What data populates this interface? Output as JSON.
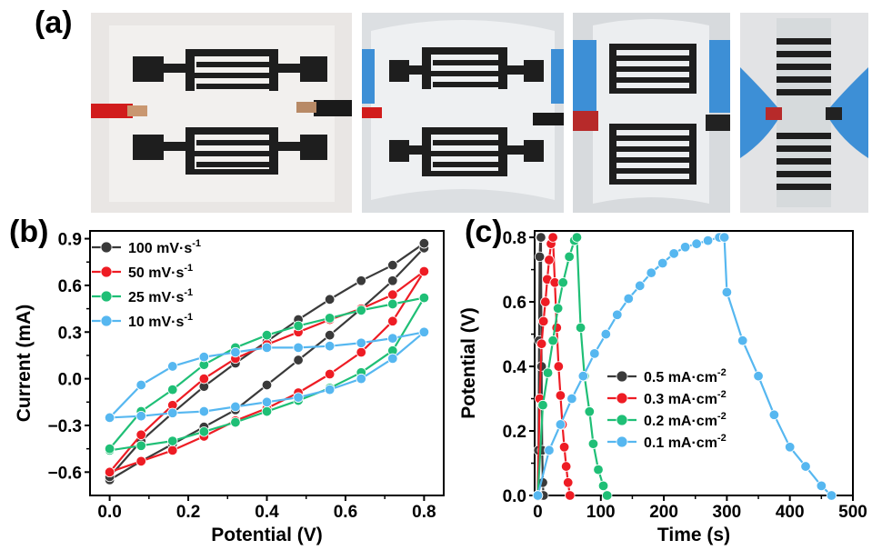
{
  "panels": {
    "a": "(a)",
    "b": "(b)",
    "c": "(c)"
  },
  "photos": [
    {
      "name": "photo-flat-device"
    },
    {
      "name": "photo-slightly-bent-device"
    },
    {
      "name": "photo-bent-device"
    },
    {
      "name": "photo-rolled-device"
    }
  ],
  "colors": {
    "black": "#3a3a3a",
    "red": "#ee1c24",
    "green": "#1fbf76",
    "blue": "#56b7f0"
  },
  "chart_data": [
    {
      "type": "line",
      "panel": "(b)",
      "xlabel": "Potential (V)",
      "ylabel": "Current (mA)",
      "xlim": [
        -0.05,
        0.85
      ],
      "ylim": [
        -0.75,
        0.95
      ],
      "xticks": [
        0.0,
        0.2,
        0.4,
        0.6,
        0.8
      ],
      "xtick_labels": [
        "0.0",
        "0.2",
        "0.4",
        "0.6",
        "0.8"
      ],
      "yticks": [
        -0.6,
        -0.3,
        0.0,
        0.3,
        0.6,
        0.9
      ],
      "ytick_labels": [
        "−0.6",
        "−0.3",
        "0.0",
        "0.3",
        "0.6",
        "0.9"
      ],
      "legend_position": "top-left",
      "series": [
        {
          "name": "100 mV·s",
          "sup": "-1",
          "color": "#3a3a3a",
          "x": [
            0.0,
            0.08,
            0.16,
            0.24,
            0.32,
            0.4,
            0.48,
            0.56,
            0.64,
            0.72,
            0.8,
            0.8,
            0.72,
            0.64,
            0.56,
            0.48,
            0.4,
            0.32,
            0.24,
            0.16,
            0.08,
            0.0
          ],
          "y": [
            -0.65,
            -0.53,
            -0.42,
            -0.31,
            -0.2,
            -0.04,
            0.12,
            0.28,
            0.45,
            0.63,
            0.84,
            0.87,
            0.73,
            0.63,
            0.51,
            0.38,
            0.24,
            0.1,
            -0.05,
            -0.22,
            -0.4,
            -0.63
          ]
        },
        {
          "name": "50 mV·s",
          "sup": "-1",
          "color": "#ee1c24",
          "x": [
            0.0,
            0.08,
            0.16,
            0.24,
            0.32,
            0.4,
            0.48,
            0.56,
            0.64,
            0.72,
            0.8,
            0.8,
            0.72,
            0.64,
            0.56,
            0.48,
            0.4,
            0.32,
            0.24,
            0.16,
            0.08,
            0.0
          ],
          "y": [
            -0.6,
            -0.53,
            -0.46,
            -0.37,
            -0.27,
            -0.19,
            -0.09,
            0.03,
            0.17,
            0.37,
            0.69,
            0.69,
            0.54,
            0.45,
            0.38,
            0.3,
            0.22,
            0.13,
            0.0,
            -0.17,
            -0.36,
            -0.6
          ]
        },
        {
          "name": "25 mV·s",
          "sup": "-1",
          "color": "#1fbf76",
          "x": [
            0.0,
            0.08,
            0.16,
            0.24,
            0.32,
            0.4,
            0.48,
            0.56,
            0.64,
            0.72,
            0.8,
            0.8,
            0.72,
            0.64,
            0.56,
            0.48,
            0.4,
            0.32,
            0.24,
            0.16,
            0.08,
            0.0
          ],
          "y": [
            -0.46,
            -0.43,
            -0.4,
            -0.34,
            -0.28,
            -0.21,
            -0.14,
            -0.06,
            0.04,
            0.18,
            0.52,
            0.52,
            0.48,
            0.44,
            0.39,
            0.34,
            0.28,
            0.2,
            0.09,
            -0.07,
            -0.21,
            -0.45
          ]
        },
        {
          "name": "10 mV·s",
          "sup": "-1",
          "color": "#56b7f0",
          "x": [
            0.0,
            0.08,
            0.16,
            0.24,
            0.32,
            0.4,
            0.48,
            0.56,
            0.64,
            0.72,
            0.8,
            0.8,
            0.72,
            0.64,
            0.56,
            0.48,
            0.4,
            0.32,
            0.24,
            0.16,
            0.08,
            0.0
          ],
          "y": [
            -0.25,
            -0.24,
            -0.22,
            -0.21,
            -0.18,
            -0.15,
            -0.12,
            -0.07,
            0.0,
            0.13,
            0.3,
            0.3,
            0.26,
            0.23,
            0.21,
            0.2,
            0.2,
            0.17,
            0.14,
            0.08,
            -0.04,
            -0.25
          ]
        }
      ]
    },
    {
      "type": "line",
      "panel": "(c)",
      "xlabel": "Time (s)",
      "ylabel": "Potential (V)",
      "xlim": [
        -5,
        500
      ],
      "ylim": [
        0.0,
        0.82
      ],
      "xticks": [
        0,
        100,
        200,
        300,
        400,
        500
      ],
      "xtick_labels": [
        "0",
        "100",
        "200",
        "300",
        "400",
        "500"
      ],
      "yticks": [
        0.0,
        0.2,
        0.4,
        0.6,
        0.8
      ],
      "ytick_labels": [
        "0.0",
        "0.2",
        "0.4",
        "0.6",
        "0.8"
      ],
      "legend_position": "bottom-right",
      "series": [
        {
          "name": "0.5 mA·cm",
          "sup": "-2",
          "color": "#3a3a3a",
          "x": [
            0,
            1,
            2,
            3,
            4,
            5,
            6,
            7,
            8,
            9
          ],
          "y": [
            0.0,
            0.14,
            0.48,
            0.74,
            0.8,
            0.8,
            0.4,
            0.14,
            0.04,
            0.0
          ]
        },
        {
          "name": "0.3 mA·cm",
          "sup": "-2",
          "color": "#ee1c24",
          "x": [
            0,
            3,
            6,
            9,
            12,
            15,
            18,
            21,
            24,
            27,
            30,
            33,
            36,
            39,
            42,
            45,
            48,
            51
          ],
          "y": [
            0.0,
            0.3,
            0.47,
            0.54,
            0.6,
            0.67,
            0.73,
            0.78,
            0.8,
            0.66,
            0.52,
            0.4,
            0.31,
            0.22,
            0.15,
            0.09,
            0.04,
            0.0
          ]
        },
        {
          "name": "0.2 mA·cm",
          "sup": "-2",
          "color": "#1fbf76",
          "x": [
            0,
            8,
            16,
            24,
            32,
            40,
            50,
            58,
            62,
            68,
            74,
            82,
            88,
            96,
            104,
            110
          ],
          "y": [
            0.0,
            0.28,
            0.38,
            0.48,
            0.58,
            0.66,
            0.74,
            0.79,
            0.8,
            0.52,
            0.37,
            0.26,
            0.16,
            0.08,
            0.03,
            0.0
          ]
        },
        {
          "name": "0.1 mA·cm",
          "sup": "-2",
          "color": "#56b7f0",
          "x": [
            0,
            18,
            36,
            54,
            72,
            90,
            108,
            126,
            144,
            162,
            180,
            198,
            216,
            234,
            252,
            270,
            288,
            296,
            300,
            325,
            350,
            375,
            400,
            425,
            450,
            466
          ],
          "y": [
            0.0,
            0.14,
            0.22,
            0.3,
            0.37,
            0.44,
            0.5,
            0.56,
            0.61,
            0.65,
            0.69,
            0.72,
            0.75,
            0.77,
            0.78,
            0.79,
            0.8,
            0.8,
            0.63,
            0.48,
            0.37,
            0.25,
            0.15,
            0.09,
            0.03,
            0.0
          ]
        }
      ]
    }
  ]
}
